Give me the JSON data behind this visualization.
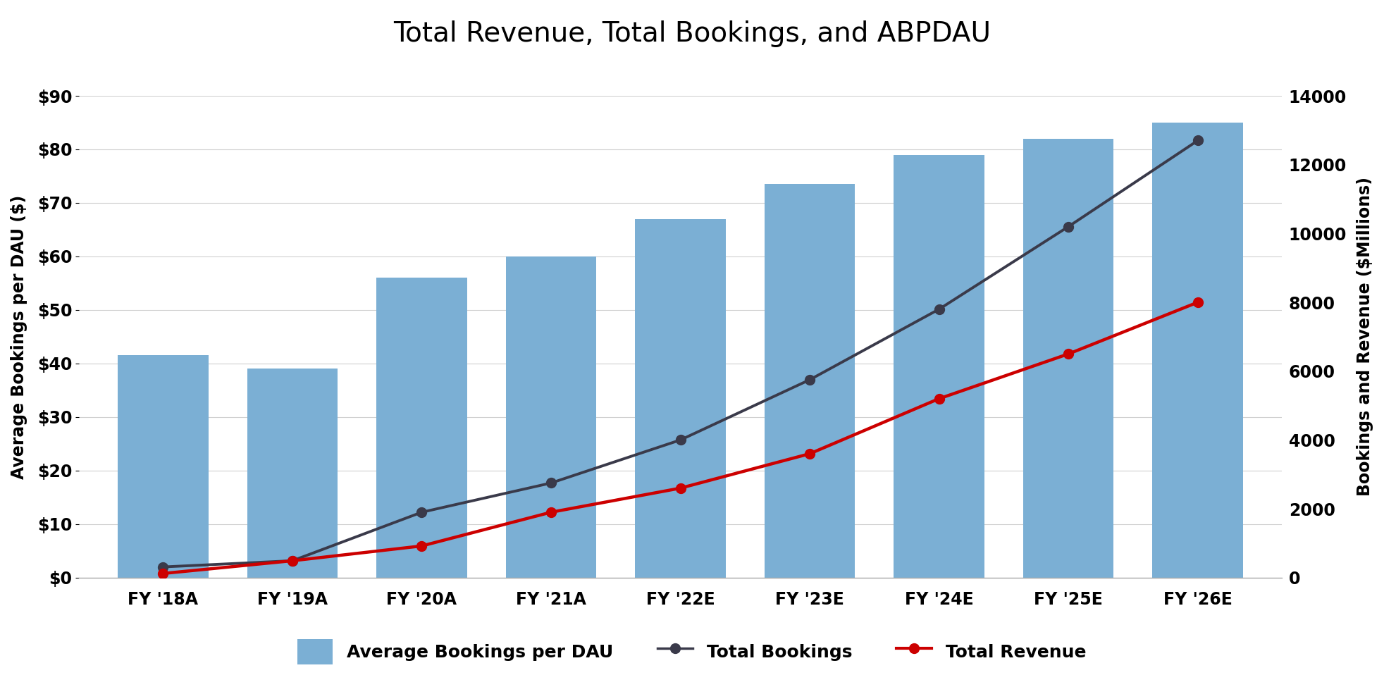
{
  "title": "Total Revenue, Total Bookings, and ABPDAU",
  "categories": [
    "FY '18A",
    "FY '19A",
    "FY '20A",
    "FY '21A",
    "FY '22E",
    "FY '23E",
    "FY '24E",
    "FY '25E",
    "FY '26E"
  ],
  "abpdau": [
    41.5,
    39,
    56,
    60,
    67,
    73.5,
    79,
    82,
    85
  ],
  "total_bookings": [
    310,
    490,
    1900,
    2750,
    4000,
    5750,
    7800,
    10200,
    12700
  ],
  "total_revenue": [
    120,
    490,
    920,
    1900,
    2600,
    3600,
    5200,
    6500,
    8000
  ],
  "bar_color": "#7bafd4",
  "bookings_line_color": "#3a3a4a",
  "revenue_line_color": "#cc0000",
  "left_ylim": [
    0,
    90
  ],
  "right_ylim": [
    0,
    14000
  ],
  "left_yticks": [
    0,
    10,
    20,
    30,
    40,
    50,
    60,
    70,
    80,
    90
  ],
  "right_yticks": [
    0,
    2000,
    4000,
    6000,
    8000,
    10000,
    12000,
    14000
  ],
  "left_ylabel": "Average Bookings per DAU ($)",
  "right_ylabel": "Bookings and Revenue ($Millions)",
  "background_color": "#ffffff",
  "title_fontsize": 28,
  "axis_label_fontsize": 17,
  "tick_fontsize": 17,
  "legend_fontsize": 18
}
